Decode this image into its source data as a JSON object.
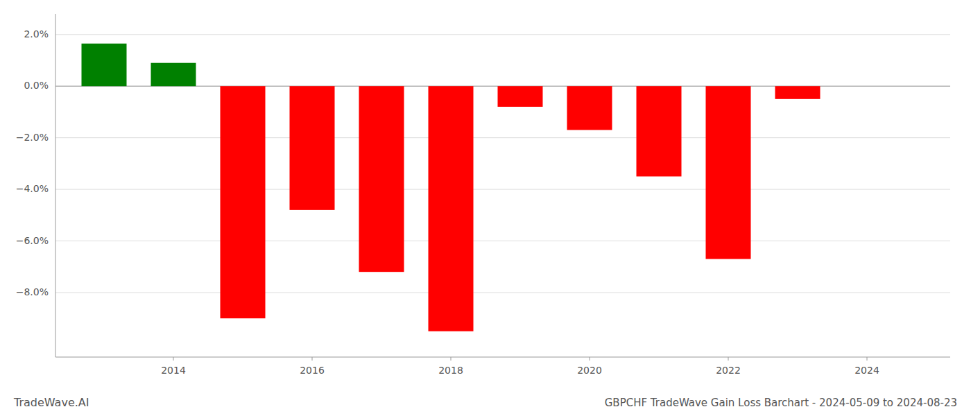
{
  "chart_data": {
    "type": "bar",
    "title": "GBPCHF TradeWave Gain Loss Barchart - 2024-05-09 to 2024-08-23",
    "annotations": [
      "TradeWave.AI"
    ],
    "x": [
      2013,
      2014,
      2015,
      2016,
      2017,
      2018,
      2019,
      2020,
      2021,
      2022,
      2023
    ],
    "values": [
      1.65,
      0.9,
      -9.0,
      -4.8,
      -7.2,
      -9.5,
      -0.8,
      -1.7,
      -3.5,
      -6.7,
      -0.5
    ],
    "colors": [
      "#008000",
      "#008000",
      "#ff0000",
      "#ff0000",
      "#ff0000",
      "#ff0000",
      "#ff0000",
      "#ff0000",
      "#ff0000",
      "#ff0000",
      "#ff0000"
    ],
    "xlim": [
      2012.3,
      2025.2
    ],
    "ylim": [
      -10.5,
      2.8
    ],
    "xticks": [
      2014,
      2016,
      2018,
      2020,
      2022,
      2024
    ],
    "yticks": [
      {
        "value": 2.0,
        "label": "2.0%"
      },
      {
        "value": 0.0,
        "label": "0.0%"
      },
      {
        "value": -2.0,
        "label": "−2.0%"
      },
      {
        "value": -4.0,
        "label": "−4.0%"
      },
      {
        "value": -6.0,
        "label": "−6.0%"
      },
      {
        "value": -8.0,
        "label": "−8.0%"
      }
    ],
    "grid": true
  }
}
